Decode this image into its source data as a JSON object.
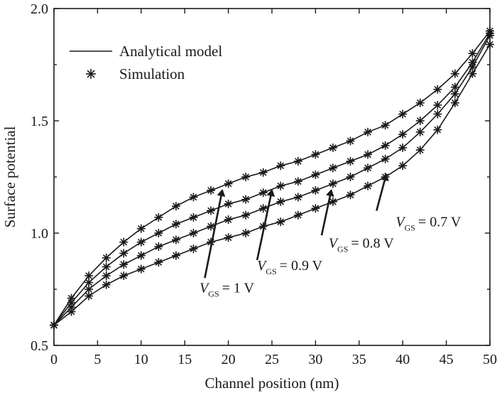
{
  "chart_data": {
    "type": "line",
    "xlabel": "Channel position (nm)",
    "ylabel": "Surface potential",
    "xlim": [
      0,
      50
    ],
    "ylim": [
      0.5,
      2.0
    ],
    "xticks": [
      0,
      5,
      10,
      15,
      20,
      25,
      30,
      35,
      40,
      45,
      50
    ],
    "yticks": [
      0.5,
      1.0,
      1.5,
      2.0
    ],
    "x_tick_labels": [
      "0",
      "5",
      "10",
      "15",
      "20",
      "25",
      "30",
      "35",
      "40",
      "45",
      "50"
    ],
    "y_tick_labels": [
      "0.5",
      "1.0",
      "1.5",
      "2.0"
    ],
    "grid": false,
    "legend": {
      "placement": "top-left",
      "entries": [
        {
          "label": "Analytical model",
          "style": "line"
        },
        {
          "label": "Simulation",
          "style": "asterisk"
        }
      ]
    },
    "x": [
      0,
      2,
      4,
      6,
      8,
      10,
      12,
      14,
      16,
      18,
      20,
      22,
      24,
      26,
      28,
      30,
      32,
      34,
      36,
      38,
      40,
      42,
      44,
      46,
      48,
      50
    ],
    "series": [
      {
        "vgs": "1",
        "values": [
          0.59,
          0.71,
          0.81,
          0.89,
          0.96,
          1.02,
          1.07,
          1.12,
          1.16,
          1.19,
          1.22,
          1.25,
          1.27,
          1.3,
          1.32,
          1.35,
          1.38,
          1.41,
          1.45,
          1.48,
          1.53,
          1.58,
          1.64,
          1.71,
          1.8,
          1.9
        ]
      },
      {
        "vgs": "0.9",
        "values": [
          0.59,
          0.69,
          0.78,
          0.85,
          0.91,
          0.96,
          1.0,
          1.04,
          1.07,
          1.1,
          1.13,
          1.15,
          1.18,
          1.21,
          1.23,
          1.26,
          1.29,
          1.32,
          1.35,
          1.39,
          1.44,
          1.5,
          1.57,
          1.65,
          1.76,
          1.89
        ]
      },
      {
        "vgs": "0.8",
        "values": [
          0.59,
          0.67,
          0.75,
          0.81,
          0.86,
          0.9,
          0.94,
          0.97,
          1.0,
          1.03,
          1.06,
          1.08,
          1.11,
          1.14,
          1.16,
          1.19,
          1.22,
          1.25,
          1.29,
          1.33,
          1.38,
          1.45,
          1.53,
          1.62,
          1.74,
          1.88
        ]
      },
      {
        "vgs": "0.7",
        "values": [
          0.59,
          0.65,
          0.72,
          0.77,
          0.81,
          0.84,
          0.87,
          0.9,
          0.93,
          0.96,
          0.98,
          1.0,
          1.03,
          1.05,
          1.08,
          1.11,
          1.14,
          1.17,
          1.21,
          1.25,
          1.3,
          1.37,
          1.46,
          1.58,
          1.71,
          1.84
        ]
      }
    ],
    "annotations": [
      {
        "var": "V",
        "sub": "GS",
        "rest": "= 1 V",
        "text_x": 16.7,
        "text_y": 0.735,
        "arrow_from": [
          17.3,
          0.8
        ],
        "arrow_to": [
          19.3,
          1.19
        ]
      },
      {
        "var": "V",
        "sub": "GS",
        "rest": "= 0.9 V",
        "text_x": 23.3,
        "text_y": 0.835,
        "arrow_from": [
          23.3,
          0.88
        ],
        "arrow_to": [
          25.0,
          1.19
        ]
      },
      {
        "var": "V",
        "sub": "GS",
        "rest": "= 0.8 V",
        "text_x": 31.5,
        "text_y": 0.935,
        "arrow_from": [
          30.7,
          0.99
        ],
        "arrow_to": [
          31.8,
          1.19
        ]
      },
      {
        "var": "V",
        "sub": "GS",
        "rest": "= 0.7 V",
        "text_x": 39.2,
        "text_y": 1.03,
        "arrow_from": [
          37.0,
          1.1
        ],
        "arrow_to": [
          38.1,
          1.26
        ]
      }
    ]
  }
}
